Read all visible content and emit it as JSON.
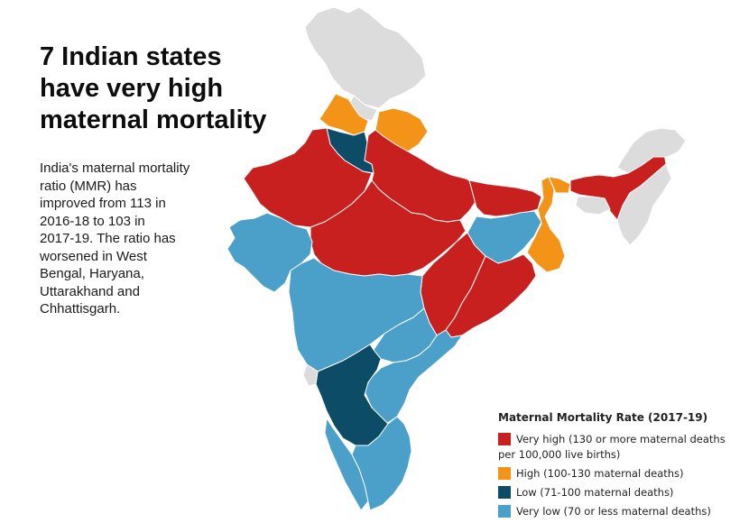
{
  "headline": [
    "7 Indian states",
    "have very high",
    "maternal mortality"
  ],
  "intro": [
    "India's maternal mortality",
    "ratio (MMR) has",
    "improved from 113 in",
    "2016-18 to 103 in",
    "2017-19. The ratio has",
    "worsened in West",
    "Bengal, Haryana,",
    "Uttarakhand and",
    "Chhattisgarh."
  ],
  "legend": {
    "title": "Maternal Mortality Rate (2017-19)",
    "items": [
      {
        "key": "very-high",
        "line1": "Very high (130 or more maternal deaths",
        "line2": "per 100,000 live births)",
        "color": "#c8201f"
      },
      {
        "key": "high",
        "line1": "High (100-130 maternal deaths)",
        "color": "#f39419"
      },
      {
        "key": "low",
        "line1": "Low (71-100 maternal deaths)",
        "color": "#0c4c67"
      },
      {
        "key": "very-low",
        "line1": "Very low (70 or less maternal deaths)",
        "color": "#4aa0c8"
      }
    ]
  },
  "colors": {
    "no_data": "#dcdcdc",
    "very_high": "#c8201f",
    "high": "#f39419",
    "low": "#0c4c67",
    "very_low": "#4aa0c8",
    "border": "#ffffff"
  }
}
